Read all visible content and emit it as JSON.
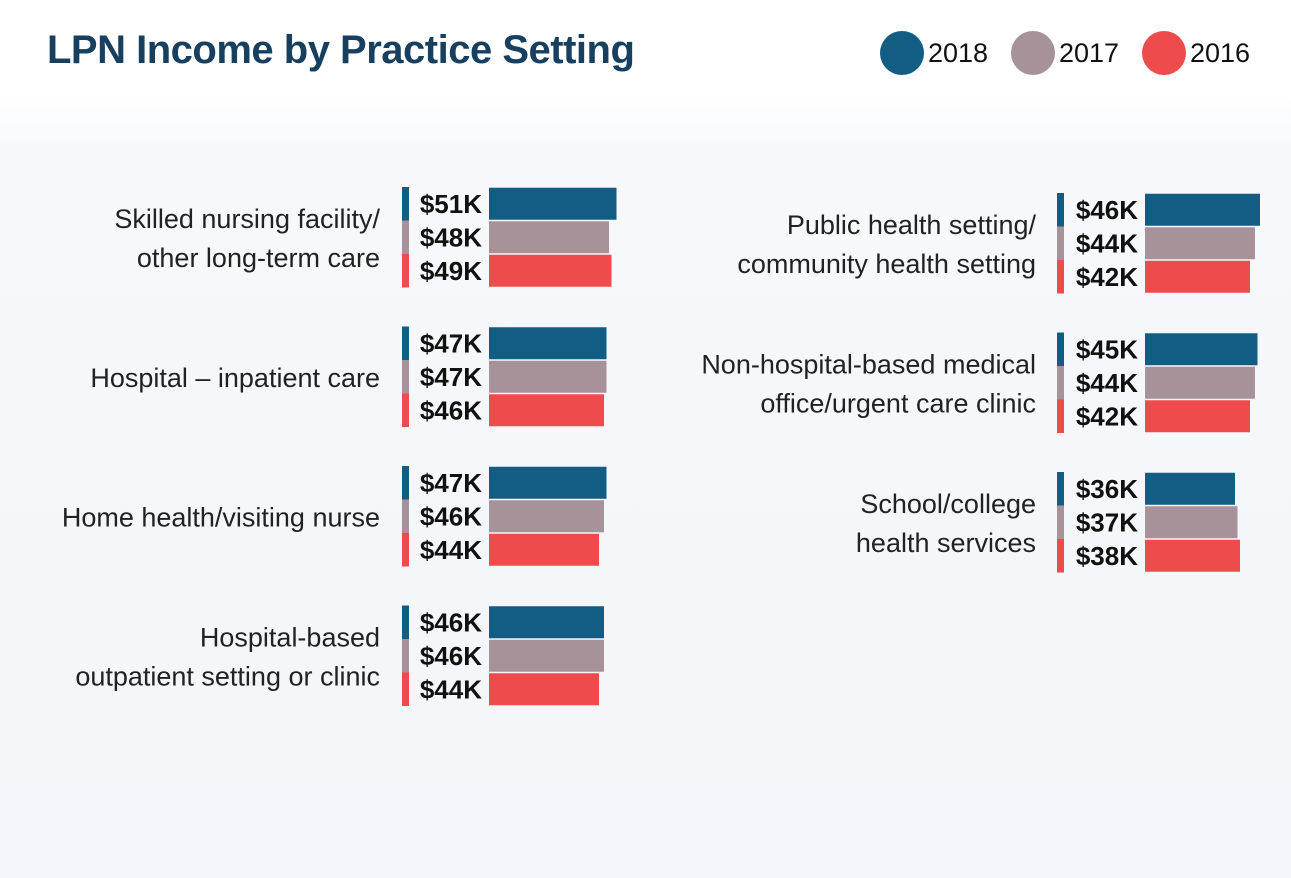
{
  "chart_data": {
    "type": "bar",
    "orientation": "horizontal",
    "title": "LPN Income by Practice Setting",
    "legend_position": "top-right",
    "grid": false,
    "series_names": [
      "2018",
      "2017",
      "2016"
    ],
    "colors": {
      "2018": "#135c83",
      "2017": "#a8929a",
      "2016": "#ee4b4d"
    },
    "x_unit": "thousand USD",
    "categories": [
      {
        "lines": [
          "Skilled nursing facility/",
          "other long-term care"
        ],
        "values": [
          51,
          48,
          49
        ],
        "labels": [
          "$51K",
          "$48K",
          "$49K"
        ]
      },
      {
        "lines": [
          "Hospital – inpatient care"
        ],
        "values": [
          47,
          47,
          46
        ],
        "labels": [
          "$47K",
          "$47K",
          "$46K"
        ]
      },
      {
        "lines": [
          "Home health/visiting nurse"
        ],
        "values": [
          47,
          46,
          44
        ],
        "labels": [
          "$47K",
          "$46K",
          "$44K"
        ]
      },
      {
        "lines": [
          "Hospital-based",
          "outpatient setting or clinic"
        ],
        "values": [
          46,
          46,
          44
        ],
        "labels": [
          "$46K",
          "$46K",
          "$44K"
        ]
      },
      {
        "lines": [
          "Public health setting/",
          "community health setting"
        ],
        "values": [
          46,
          44,
          42
        ],
        "labels": [
          "$46K",
          "$44K",
          "$42K"
        ]
      },
      {
        "lines": [
          "Non-hospital-based medical",
          "office/urgent care clinic"
        ],
        "values": [
          45,
          44,
          42
        ],
        "labels": [
          "$45K",
          "$44K",
          "$42K"
        ]
      },
      {
        "lines": [
          "School/college",
          "health services"
        ],
        "values": [
          36,
          37,
          38
        ],
        "labels": [
          "$36K",
          "$37K",
          "$38K"
        ]
      }
    ]
  }
}
